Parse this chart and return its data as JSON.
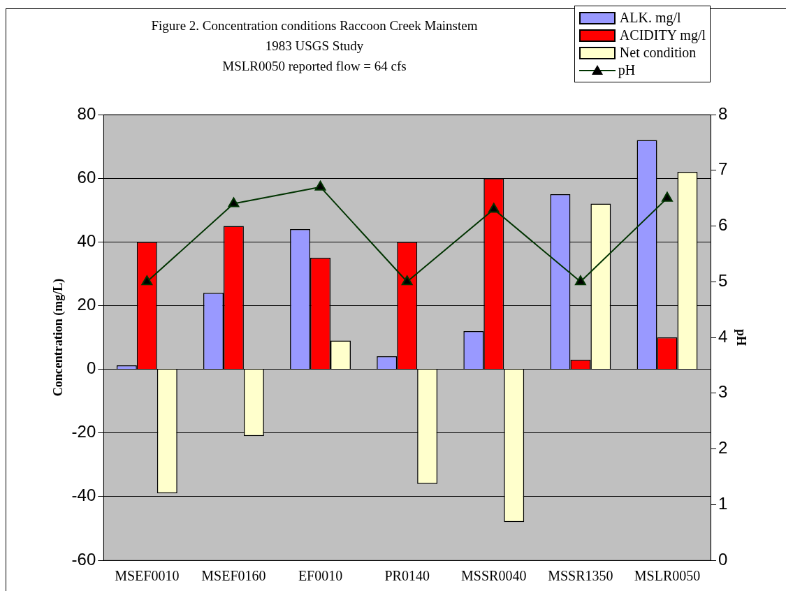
{
  "chart_data": {
    "type": "bar",
    "title": "Figure 2.  Concentration conditions Raccoon Creek Mainstem\n1983 USGS Study\nMSLR0050 reported flow = 64 cfs",
    "ylabel": "Concentration (mg/L)",
    "y2label": "pH",
    "categories": [
      "MSEF0010",
      "MSEF0160",
      "EF0010",
      "PR0140",
      "MSSR0040",
      "MSSR1350",
      "MSLR0050"
    ],
    "series": [
      {
        "name": "ALK. mg/l",
        "color": "#9999ff",
        "values": [
          1.2,
          24,
          44,
          4.1,
          12,
          55,
          72
        ]
      },
      {
        "name": "ACIDITY mg/l",
        "color": "#ff0000",
        "values": [
          40,
          45,
          35,
          40,
          60,
          3,
          10
        ]
      },
      {
        "name": "Net condition",
        "color": "#ffffcc",
        "values": [
          -39,
          -21,
          9,
          -36,
          -48,
          52,
          62
        ]
      },
      {
        "name": "pH",
        "type": "line",
        "axis": "y2",
        "color": "#003300",
        "marker": "triangle",
        "values": [
          5.0,
          6.4,
          6.7,
          5.0,
          6.3,
          5.0,
          6.5
        ]
      }
    ],
    "ylim": [
      -60,
      80
    ],
    "yticks": [
      -60,
      -40,
      -20,
      0,
      20,
      40,
      60,
      80
    ],
    "y2lim": [
      0,
      8
    ],
    "y2ticks": [
      0,
      1,
      2,
      3,
      4,
      5,
      6,
      7,
      8
    ],
    "grid": "y",
    "legend": "top right"
  }
}
